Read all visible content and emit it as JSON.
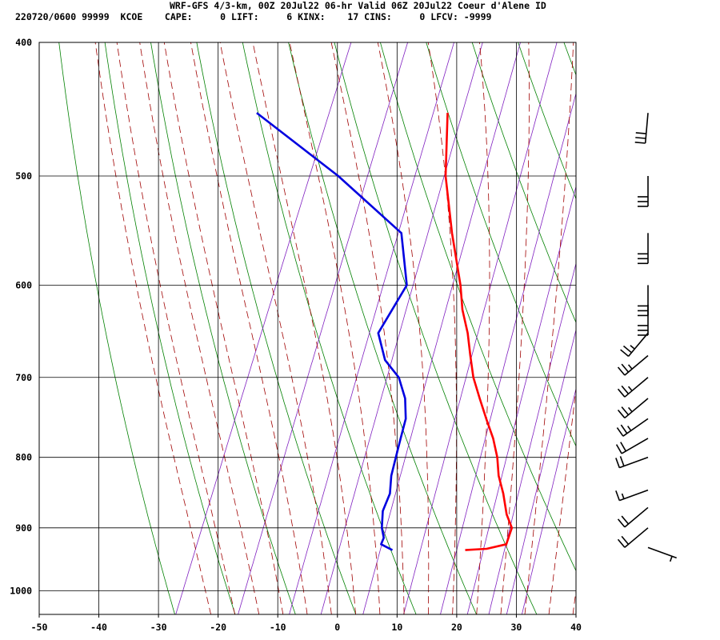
{
  "header": {
    "line1": "WRF-GFS 4/3-km, 00Z 20Jul22 06-hr Valid 06Z 20Jul22 Coeur d'Alene ID",
    "line2": "220720/0600 99999  KCOE    CAPE:     0 LIFT:     6 KINX:    17 CINS:     0 LFCV: -9999"
  },
  "chart_data": {
    "type": "skew-t log-p sounding",
    "x_axis": {
      "ticks": [
        -50,
        -40,
        -30,
        -20,
        -10,
        0,
        10,
        20,
        30,
        40
      ],
      "range": [
        -50,
        40
      ]
    },
    "y_axis": {
      "scale": "log",
      "ticks": [
        400,
        500,
        600,
        700,
        800,
        900,
        1000
      ],
      "range_hpa": [
        400,
        1040
      ]
    },
    "colors": {
      "temperature": "#ff0000",
      "dewpoint": "#0000e0",
      "dry_adiabat": "#008000",
      "moist_adiabat": "#a00000",
      "mixing_ratio": "#8020c0",
      "grid": "#000000"
    },
    "series": [
      {
        "points": [
          {
            "p": 934,
            "t": 17.0
          },
          {
            "p": 932,
            "t": 20.5
          },
          {
            "p": 925,
            "t": 23.5
          },
          {
            "p": 900,
            "t": 23.3
          },
          {
            "p": 880,
            "t": 21.5
          },
          {
            "p": 850,
            "t": 19.5
          },
          {
            "p": 825,
            "t": 17.5
          },
          {
            "p": 800,
            "t": 16.0
          },
          {
            "p": 775,
            "t": 14.0
          },
          {
            "p": 750,
            "t": 11.5
          },
          {
            "p": 725,
            "t": 9.0
          },
          {
            "p": 700,
            "t": 6.5
          },
          {
            "p": 675,
            "t": 4.5
          },
          {
            "p": 650,
            "t": 2.5
          },
          {
            "p": 625,
            "t": 0.0
          },
          {
            "p": 600,
            "t": -2.0
          },
          {
            "p": 550,
            "t": -7.0
          },
          {
            "p": 500,
            "t": -12.0
          },
          {
            "p": 450,
            "t": -16.0
          }
        ]
      },
      {
        "points": [
          {
            "p": 934,
            "t": 4.8
          },
          {
            "p": 925,
            "t": 2.5
          },
          {
            "p": 915,
            "t": 2.5
          },
          {
            "p": 900,
            "t": 1.5
          },
          {
            "p": 875,
            "t": 0.5
          },
          {
            "p": 850,
            "t": 0.5
          },
          {
            "p": 825,
            "t": -0.5
          },
          {
            "p": 800,
            "t": -1.0
          },
          {
            "p": 775,
            "t": -1.5
          },
          {
            "p": 750,
            "t": -2.0
          },
          {
            "p": 725,
            "t": -3.5
          },
          {
            "p": 700,
            "t": -6.0
          },
          {
            "p": 680,
            "t": -9.5
          },
          {
            "p": 650,
            "t": -12.5
          },
          {
            "p": 600,
            "t": -11.0
          },
          {
            "p": 550,
            "t": -15.5
          },
          {
            "p": 500,
            "t": -30.0
          },
          {
            "p": 450,
            "t": -48.0
          }
        ]
      }
    ],
    "wind_barbs": [
      {
        "p": 930,
        "dir": 110,
        "spd": 5
      },
      {
        "p": 900,
        "dir": 230,
        "spd": 20
      },
      {
        "p": 870,
        "dir": 230,
        "spd": 20
      },
      {
        "p": 845,
        "dir": 250,
        "spd": 15
      },
      {
        "p": 800,
        "dir": 250,
        "spd": 20
      },
      {
        "p": 775,
        "dir": 240,
        "spd": 20
      },
      {
        "p": 750,
        "dir": 235,
        "spd": 25
      },
      {
        "p": 725,
        "dir": 230,
        "spd": 25
      },
      {
        "p": 700,
        "dir": 230,
        "spd": 25
      },
      {
        "p": 675,
        "dir": 230,
        "spd": 25
      },
      {
        "p": 650,
        "dir": 220,
        "spd": 25
      },
      {
        "p": 620,
        "dir": 180,
        "spd": 30
      },
      {
        "p": 600,
        "dir": 180,
        "spd": 30
      },
      {
        "p": 550,
        "dir": 180,
        "spd": 30
      },
      {
        "p": 500,
        "dir": 180,
        "spd": 30
      },
      {
        "p": 450,
        "dir": 185,
        "spd": 30
      }
    ]
  }
}
